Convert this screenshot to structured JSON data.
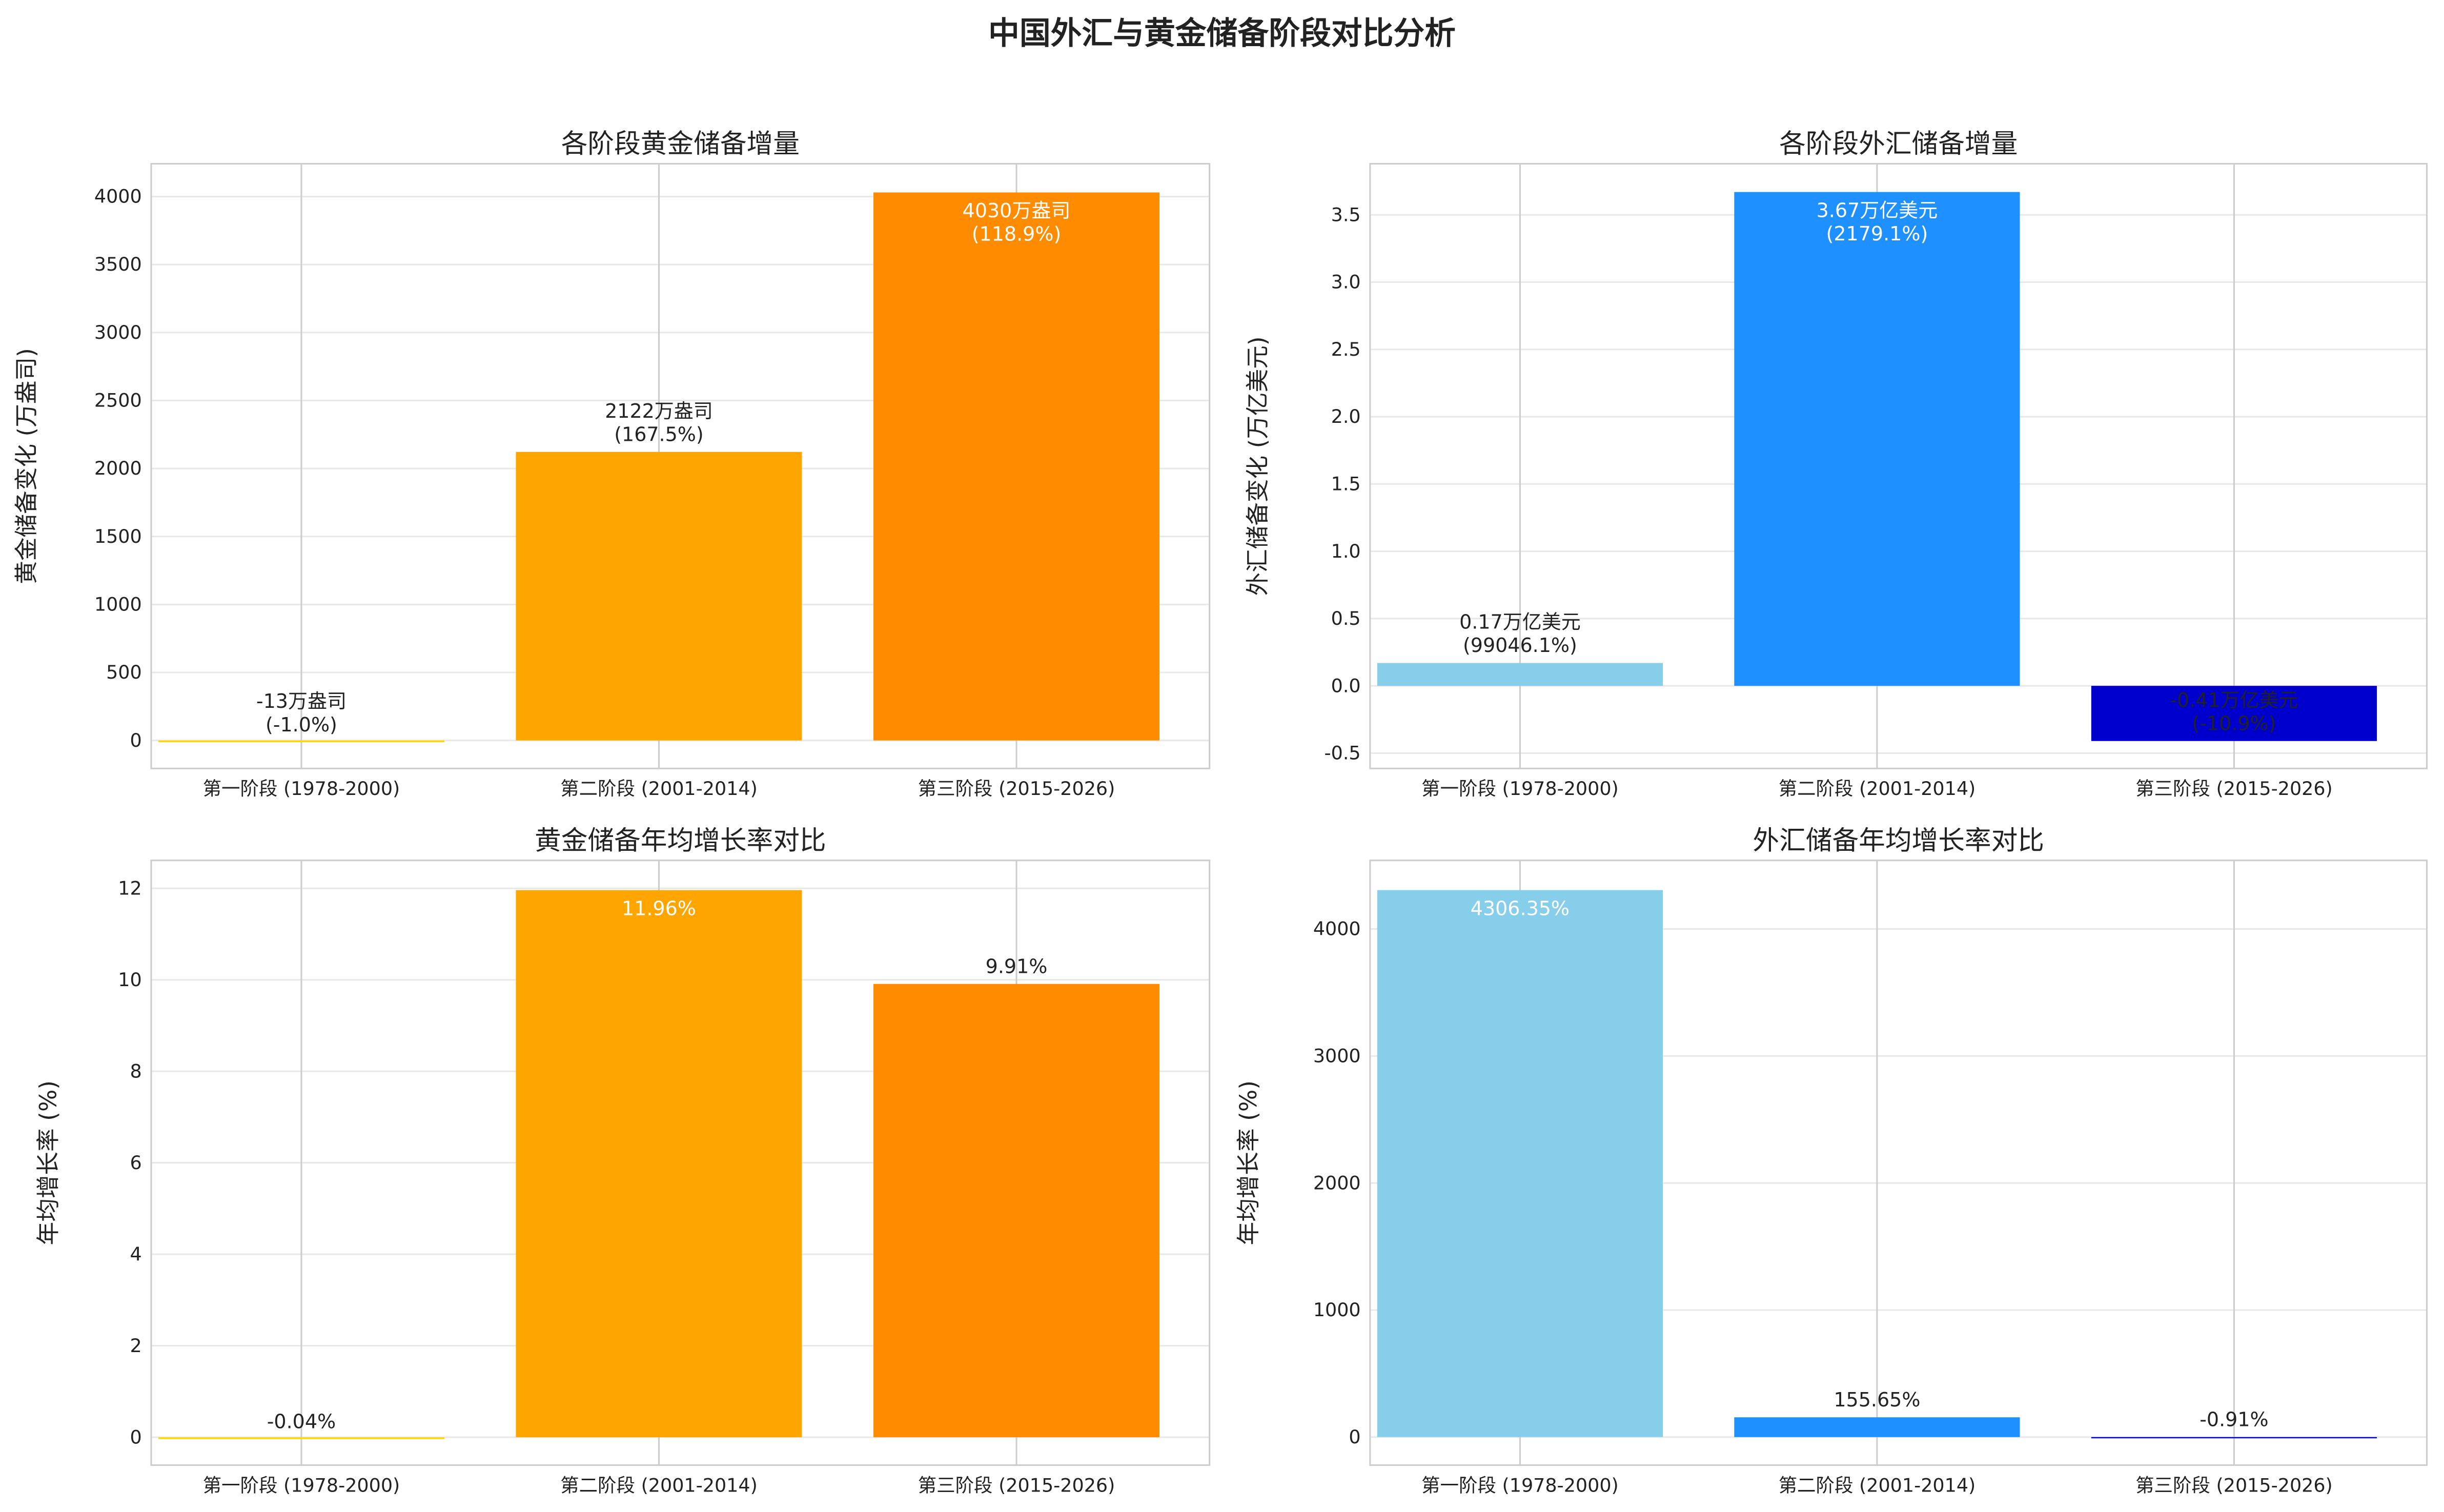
{
  "title": "中国外汇与黄金储备阶段对比分析",
  "chart_data": [
    {
      "type": "bar",
      "title": "各阶段黄金储备增量",
      "ylabel": "黄金储备变化 (万盎司)",
      "categories": [
        "第一阶段 (1978-2000)",
        "第二阶段 (2001-2014)",
        "第三阶段 (2015-2026)"
      ],
      "values": [
        -13,
        2122,
        4030
      ],
      "labels": [
        [
          "-13万盎司",
          "(-1.0%)"
        ],
        [
          "2122万盎司",
          "(167.5%)"
        ],
        [
          "4030万盎司",
          "(118.9%)"
        ]
      ],
      "colors": [
        "#FFD700",
        "#FFA500",
        "#FF8C00"
      ],
      "yticks": [
        0,
        500,
        1000,
        1500,
        2000,
        2500,
        3000,
        3500,
        4000
      ],
      "ytick_labels": [
        "0",
        "500",
        "1000",
        "1500",
        "2000",
        "2500",
        "3000",
        "3500",
        "4000"
      ],
      "ylim": [
        -206,
        4241
      ],
      "grid": true
    },
    {
      "type": "bar",
      "title": "各阶段外汇储备增量",
      "ylabel": "外汇储备变化 (万亿美元)",
      "categories": [
        "第一阶段 (1978-2000)",
        "第二阶段 (2001-2014)",
        "第三阶段 (2015-2026)"
      ],
      "values": [
        0.17,
        3.67,
        -0.41
      ],
      "labels": [
        [
          "0.17万亿美元",
          "(99046.1%)"
        ],
        [
          "3.67万亿美元",
          "(2179.1%)"
        ],
        [
          "-0.41万亿美元",
          "(-10.9%)"
        ]
      ],
      "colors": [
        "#87CEEB",
        "#1E90FF",
        "#0000CD"
      ],
      "yticks": [
        -0.5,
        0,
        0.5,
        1,
        1.5,
        2,
        2.5,
        3,
        3.5
      ],
      "ytick_labels": [
        "-0.5",
        "0.0",
        "0.5",
        "1.0",
        "1.5",
        "2.0",
        "2.5",
        "3.0",
        "3.5"
      ],
      "ylim": [
        -0.614,
        3.88
      ],
      "grid": true
    },
    {
      "type": "bar",
      "title": "黄金储备年均增长率对比",
      "ylabel": "年均增长率 (%)",
      "categories": [
        "第一阶段 (1978-2000)",
        "第二阶段 (2001-2014)",
        "第三阶段 (2015-2026)"
      ],
      "values": [
        -0.04,
        11.96,
        9.91
      ],
      "labels": [
        [
          "-0.04%"
        ],
        [
          "11.96%"
        ],
        [
          "9.91%"
        ]
      ],
      "colors": [
        "#FFD700",
        "#FFA500",
        "#FF8C00"
      ],
      "yticks": [
        0,
        2,
        4,
        6,
        8,
        10,
        12
      ],
      "ytick_labels": [
        "0",
        "2",
        "4",
        "6",
        "8",
        "10",
        "12"
      ],
      "ylim": [
        -0.61,
        12.61
      ],
      "grid": true
    },
    {
      "type": "bar",
      "title": "外汇储备年均增长率对比",
      "ylabel": "年均增长率 (%)",
      "categories": [
        "第一阶段 (1978-2000)",
        "第二阶段 (2001-2014)",
        "第三阶段 (2015-2026)"
      ],
      "values": [
        4306.35,
        155.65,
        -0.91
      ],
      "labels": [
        [
          "4306.35%"
        ],
        [
          "155.65%"
        ],
        [
          "-0.91%"
        ]
      ],
      "colors": [
        "#87CEEB",
        "#1E90FF",
        "#0000CD"
      ],
      "yticks": [
        0,
        1000,
        2000,
        3000,
        4000
      ],
      "ytick_labels": [
        "0",
        "1000",
        "2000",
        "3000",
        "4000"
      ],
      "ylim": [
        -221,
        4540
      ],
      "grid": true
    }
  ]
}
